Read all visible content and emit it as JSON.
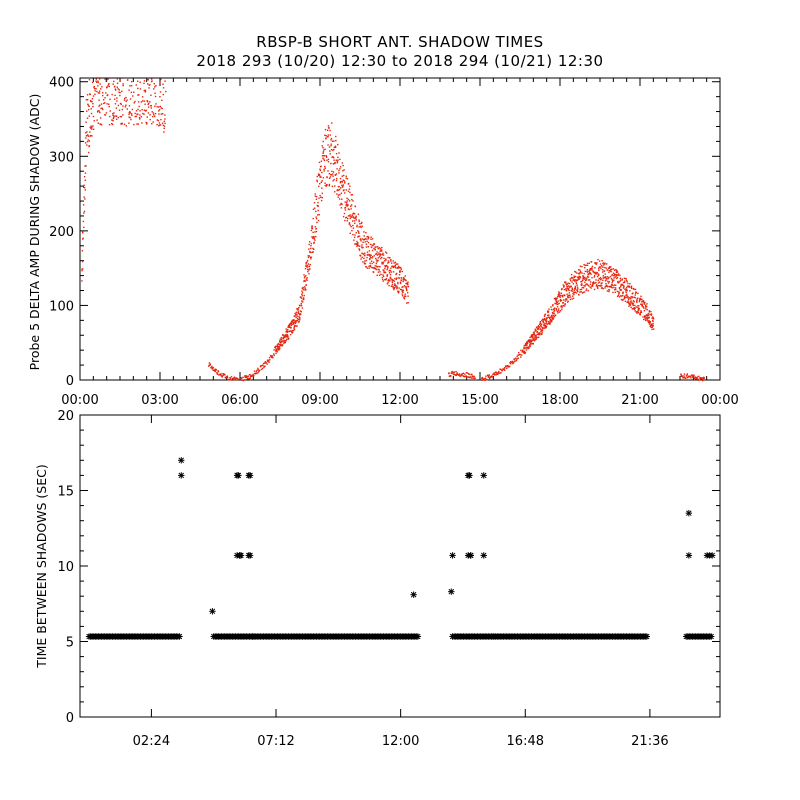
{
  "title_line1": "RBSP-B SHORT ANT. SHADOW TIMES",
  "title_line2": "2018 293 (10/20) 12:30 to 2018 294 (10/21) 12:30",
  "colors": {
    "top_points": "#e8240c",
    "bottom_points": "#000000"
  },
  "chart_data": [
    {
      "type": "scatter",
      "title": "RBSP-B SHORT ANT. SHADOW TIMES",
      "ylabel": "Probe 5 DELTA AMP DURING SHADOW (ADC)",
      "xlabel": "",
      "xlim": [
        0,
        24
      ],
      "ylim": [
        0,
        405
      ],
      "xticks": [
        0,
        3,
        6,
        9,
        12,
        15,
        18,
        21,
        24
      ],
      "xtick_labels": [
        "00:00",
        "03:00",
        "06:00",
        "09:00",
        "12:00",
        "15:00",
        "18:00",
        "21:00",
        "00:00"
      ],
      "yticks": [
        0,
        100,
        200,
        300,
        400
      ],
      "ytick_labels": [
        "0",
        "100",
        "200",
        "300",
        "400"
      ],
      "grid": false,
      "color": "#e8240c",
      "segments": [
        {
          "name": "early-saturated",
          "x": [
            0.05,
            0.2,
            0.4,
            0.6,
            0.8,
            1.0,
            1.2,
            1.5,
            1.8,
            2.1,
            2.4,
            2.7,
            3.0,
            3.2
          ],
          "y": [
            150,
            330,
            380,
            400,
            395,
            400,
            398,
            400,
            396,
            400,
            398,
            400,
            395,
            380
          ]
        },
        {
          "name": "pass1-start",
          "x": [
            4.8,
            5.0,
            5.2,
            5.4,
            5.6,
            5.9
          ],
          "y": [
            22,
            15,
            10,
            6,
            3,
            1
          ]
        },
        {
          "name": "pass1",
          "x": [
            6.0,
            6.3,
            6.6,
            7.0,
            7.4,
            7.8,
            8.2,
            8.5,
            8.8,
            9.0,
            9.2,
            9.4,
            9.6,
            9.8,
            10.0,
            10.3,
            10.6,
            10.9,
            11.2,
            11.5,
            11.8,
            12.1,
            12.3
          ],
          "y": [
            2,
            5,
            12,
            25,
            45,
            65,
            90,
            150,
            220,
            270,
            300,
            305,
            285,
            260,
            240,
            210,
            180,
            170,
            160,
            150,
            140,
            130,
            115
          ]
        },
        {
          "name": "pass2-start",
          "x": [
            13.8,
            14.0,
            14.2,
            14.4,
            14.6,
            14.8
          ],
          "y": [
            8,
            10,
            9,
            8,
            7,
            3
          ]
        },
        {
          "name": "pass2",
          "x": [
            15.0,
            15.4,
            15.8,
            16.2,
            16.6,
            17.0,
            17.4,
            17.8,
            18.2,
            18.6,
            19.0,
            19.4,
            19.8,
            20.2,
            20.6,
            21.0,
            21.3,
            21.5
          ],
          "y": [
            1,
            6,
            14,
            25,
            40,
            58,
            78,
            100,
            118,
            132,
            140,
            143,
            138,
            128,
            115,
            100,
            88,
            75
          ]
        },
        {
          "name": "pass3-start",
          "x": [
            22.5,
            22.8,
            23.1,
            23.4
          ],
          "y": [
            6,
            6,
            4,
            2
          ]
        }
      ]
    },
    {
      "type": "scatter",
      "ylabel": "TIME BETWEEN SHADOWS (SEC)",
      "xlabel": "",
      "xlim": [
        -0.35,
        24.3
      ],
      "ylim": [
        0,
        20
      ],
      "xticks": [
        2.4,
        7.2,
        12.0,
        16.8,
        21.6
      ],
      "xtick_labels": [
        "02:24",
        "07:12",
        "12:00",
        "16:48",
        "21:36"
      ],
      "yticks": [
        0,
        5,
        10,
        15,
        20
      ],
      "ytick_labels": [
        "0",
        "5",
        "10",
        "15",
        "20"
      ],
      "grid": false,
      "color": "#000000",
      "marker": "*",
      "baseline_value": 5.33,
      "baseline_ranges": [
        [
          0.0,
          3.5
        ],
        [
          4.8,
          6.3
        ],
        [
          6.3,
          12.7
        ],
        [
          14.0,
          15.6
        ],
        [
          15.6,
          21.5
        ],
        [
          23.0,
          24.0
        ]
      ],
      "points": {
        "x": [
          3.55,
          3.55,
          4.75,
          5.7,
          5.75,
          5.8,
          5.85,
          5.7,
          5.8,
          6.15,
          6.2,
          6.15,
          6.2,
          12.5,
          13.95,
          14.0,
          14.6,
          14.65,
          14.7,
          14.6,
          14.7,
          15.2,
          15.2,
          23.1,
          23.1,
          23.8,
          23.9,
          24.0
        ],
        "y": [
          17.0,
          16.0,
          7.0,
          16.0,
          16.0,
          10.7,
          10.7,
          10.7,
          10.7,
          16.0,
          10.7,
          10.7,
          16.0,
          8.1,
          8.3,
          10.7,
          16.0,
          16.0,
          10.7,
          10.7,
          10.7,
          16.0,
          10.7,
          13.5,
          10.7,
          10.7,
          10.7,
          10.7
        ]
      }
    }
  ]
}
